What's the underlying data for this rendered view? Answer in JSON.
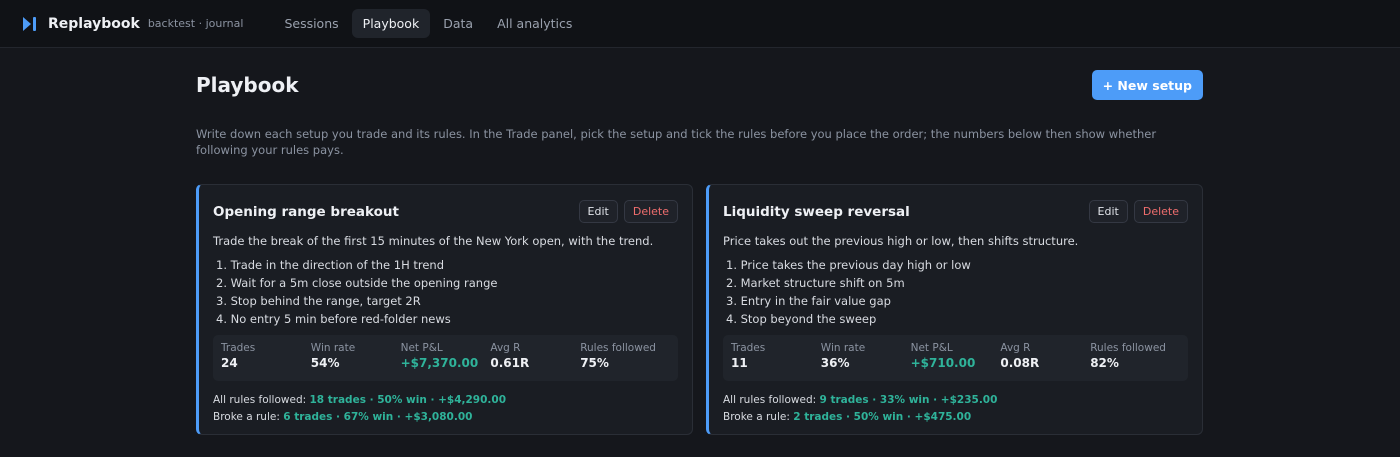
{
  "app": {
    "name": "Replaybook",
    "subtitle": "backtest · journal",
    "nav": [
      "Sessions",
      "Playbook",
      "Data",
      "All analytics"
    ],
    "active_nav": "Playbook"
  },
  "page": {
    "title": "Playbook",
    "new_button": "+ New setup",
    "intro": "Write down each setup you trade and its rules. In the Trade panel, pick the setup and tick the rules before you place the order; the numbers below then show whether following your rules pays."
  },
  "labels": {
    "edit": "Edit",
    "delete": "Delete",
    "stats": [
      "Trades",
      "Win rate",
      "Net P&L",
      "Avg R",
      "Rules followed"
    ],
    "all_rules": "All rules followed:",
    "broke_rule": "Broke a rule:"
  },
  "setups": [
    {
      "title": "Opening range breakout",
      "description": "Trade the break of the first 15 minutes of the New York open, with the trend.",
      "rules": [
        "1. Trade in the direction of the 1H trend",
        "2. Wait for a 5m close outside the opening range",
        "3. Stop behind the range, target 2R",
        "4. No entry 5 min before red-folder news"
      ],
      "stats": [
        "24",
        "54%",
        "+$7,370.00",
        "0.61R",
        "75%"
      ],
      "all_rules_summary": "18 trades · 50% win · +$4,290.00",
      "broke_rule_summary": "6 trades · 67% win · +$3,080.00"
    },
    {
      "title": "Liquidity sweep reversal",
      "description": "Price takes out the previous high or low, then shifts structure.",
      "rules": [
        "1. Price takes the previous day high or low",
        "2. Market structure shift on 5m",
        "3. Entry in the fair value gap",
        "4. Stop beyond the sweep"
      ],
      "stats": [
        "11",
        "36%",
        "+$710.00",
        "0.08R",
        "82%"
      ],
      "all_rules_summary": "9 trades · 33% win · +$235.00",
      "broke_rule_summary": "2 trades · 50% win · +$475.00"
    }
  ],
  "colors": {
    "accent": "#4d9cf8",
    "positive": "#2fb39a",
    "danger": "#f06e6e",
    "background": "#15171c"
  }
}
